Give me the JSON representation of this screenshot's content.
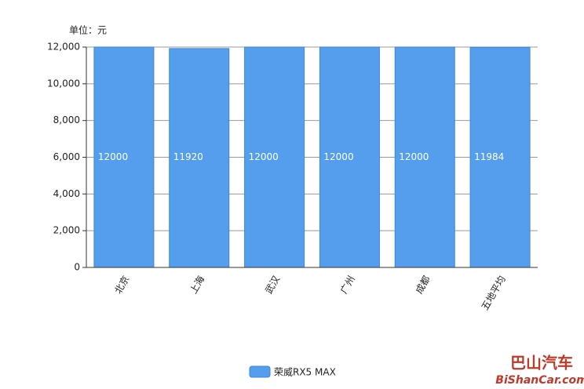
{
  "chart_data": {
    "type": "bar",
    "unit_label": "单位：元",
    "categories": [
      "北京",
      "上海",
      "武汉",
      "广州",
      "成都",
      "五地平均"
    ],
    "series": [
      {
        "name": "荣威RX5 MAX",
        "color": "#559ded",
        "values": [
          12000,
          11920,
          12000,
          12000,
          12000,
          11984
        ]
      }
    ],
    "ylim": [
      0,
      12000
    ],
    "yticks": [
      0,
      {
        "value": 2000,
        "label": "2,000"
      },
      {
        "value": 4000,
        "label": "4,000"
      },
      {
        "value": 6000,
        "label": "6,000"
      },
      {
        "value": 8000,
        "label": "8,000"
      },
      {
        "value": 10000,
        "label": "10,000"
      },
      {
        "value": 12000,
        "label": "12,000"
      }
    ],
    "grid": true,
    "legend": "bottom"
  },
  "watermark": {
    "name": "巴山汽车",
    "site": "BiShanCar.com"
  }
}
